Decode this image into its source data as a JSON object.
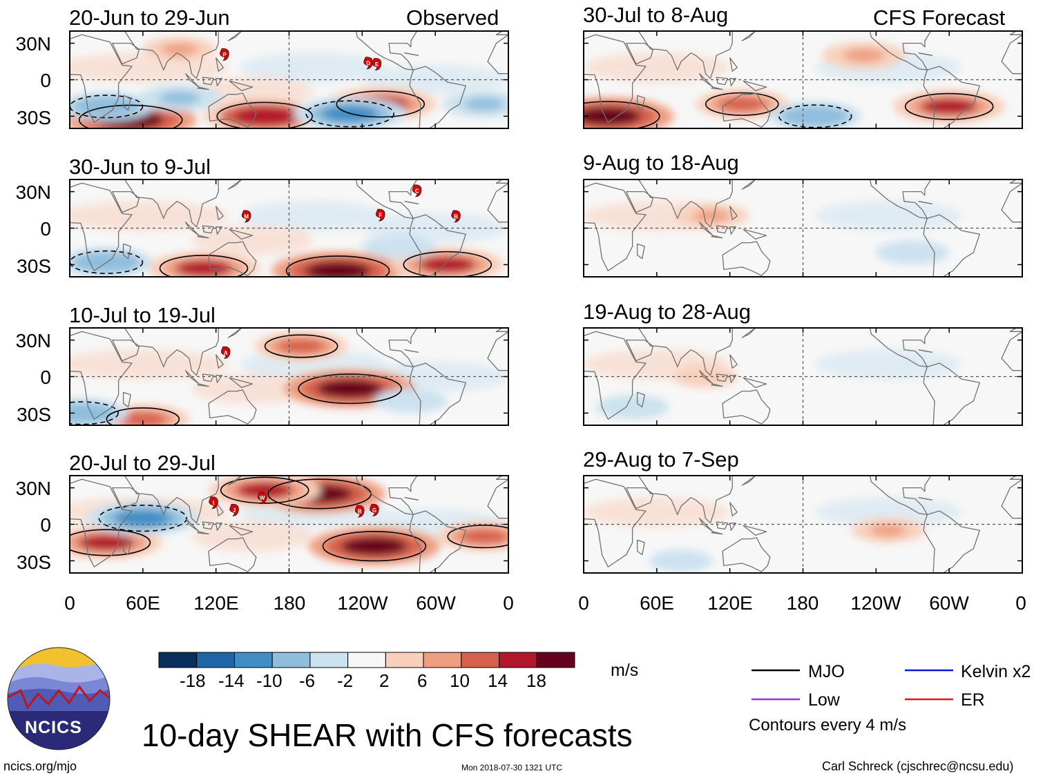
{
  "chart_data": {
    "type": "heatmap",
    "title": "10-day SHEAR with CFS forecasts",
    "colorbar": {
      "units": "m/s",
      "tick_labels": [
        "-18",
        "-14",
        "-10",
        "-6",
        "-2",
        "2",
        "6",
        "10",
        "14",
        "18"
      ],
      "levels": [
        -18,
        -14,
        -10,
        -6,
        -2,
        2,
        6,
        10,
        14,
        18
      ],
      "colors": [
        "#0a2e5c",
        "#1f66a8",
        "#3f8dc4",
        "#8fbedd",
        "#cce2ef",
        "#f7f7f7",
        "#f8d0bc",
        "#ee9f81",
        "#d6604d",
        "#b2182b",
        "#67001f"
      ]
    },
    "x_axis": {
      "tick_labels": [
        "0",
        "60E",
        "120E",
        "180",
        "120W",
        "60W",
        "0"
      ],
      "tick_values_lon": [
        0,
        60,
        120,
        180,
        240,
        300,
        360
      ],
      "range": [
        0,
        360
      ]
    },
    "y_axis": {
      "tick_labels": [
        "30N",
        "0",
        "30S"
      ],
      "tick_values_lat": [
        30,
        0,
        -30
      ],
      "range": [
        -40,
        40
      ]
    },
    "panels": [
      {
        "column": "observed",
        "row": 0,
        "date_range": "20-Jun to 29-Jun",
        "corner_label": "Observed",
        "storms": [
          {
            "letter": "P",
            "lon": 127,
            "lat": 21
          },
          {
            "letter": "D",
            "lon": 245,
            "lat": 14
          },
          {
            "letter": "E",
            "lon": 252,
            "lat": 13
          }
        ],
        "anomalies": [
          {
            "lon": 50,
            "lat": -33,
            "value": 18
          },
          {
            "lon": 160,
            "lat": -30,
            "value": 16
          },
          {
            "lon": 255,
            "lat": -20,
            "value": 14
          },
          {
            "lon": 230,
            "lat": -28,
            "value": -14
          },
          {
            "lon": 30,
            "lat": -22,
            "value": -10
          },
          {
            "lon": 90,
            "lat": -15,
            "value": -8
          },
          {
            "lon": 340,
            "lat": -20,
            "value": -8
          },
          {
            "lon": 90,
            "lat": 25,
            "value": 6
          }
        ]
      },
      {
        "column": "forecast",
        "row": 0,
        "date_range": "30-Jul to 8-Aug",
        "corner_label": "CFS Forecast",
        "anomalies": [
          {
            "lon": 20,
            "lat": -30,
            "value": 18
          },
          {
            "lon": 300,
            "lat": -22,
            "value": 14
          },
          {
            "lon": 130,
            "lat": -20,
            "value": 10
          },
          {
            "lon": 190,
            "lat": -30,
            "value": -10
          },
          {
            "lon": 230,
            "lat": 20,
            "value": 8
          }
        ]
      },
      {
        "column": "observed",
        "row": 1,
        "date_range": "30-Jun to 9-Jul",
        "storms": [
          {
            "letter": "M",
            "lon": 145,
            "lat": 10
          },
          {
            "letter": "F",
            "lon": 255,
            "lat": 11
          },
          {
            "letter": "C",
            "lon": 285,
            "lat": 31
          },
          {
            "letter": "B",
            "lon": 317,
            "lat": 10
          }
        ],
        "anomalies": [
          {
            "lon": 220,
            "lat": -35,
            "value": 18
          },
          {
            "lon": 110,
            "lat": -33,
            "value": 14
          },
          {
            "lon": 310,
            "lat": -30,
            "value": 14
          },
          {
            "lon": 30,
            "lat": -28,
            "value": -10
          },
          {
            "lon": 270,
            "lat": -15,
            "value": -6
          }
        ]
      },
      {
        "column": "forecast",
        "row": 1,
        "date_range": "9-Aug to 18-Aug",
        "anomalies": [
          {
            "lon": 105,
            "lat": 10,
            "value": 6
          },
          {
            "lon": 270,
            "lat": -20,
            "value": -6
          }
        ]
      },
      {
        "column": "observed",
        "row": 2,
        "date_range": "10-Jul to 19-Jul",
        "storms": [
          {
            "letter": "A",
            "lon": 128,
            "lat": 20
          }
        ],
        "anomalies": [
          {
            "lon": 230,
            "lat": -10,
            "value": 18
          },
          {
            "lon": 190,
            "lat": 25,
            "value": 10
          },
          {
            "lon": 60,
            "lat": -35,
            "value": 10
          },
          {
            "lon": 10,
            "lat": -30,
            "value": -10
          },
          {
            "lon": 280,
            "lat": -20,
            "value": -6
          }
        ]
      },
      {
        "column": "forecast",
        "row": 2,
        "date_range": "19-Aug to 28-Aug",
        "anomalies": [
          {
            "lon": 100,
            "lat": 0,
            "value": 4
          },
          {
            "lon": 40,
            "lat": -25,
            "value": -6
          }
        ]
      },
      {
        "column": "observed",
        "row": 3,
        "date_range": "20-Jul to 29-Jul",
        "storms": [
          {
            "letter": "Ⅰ",
            "lon": 118,
            "lat": 18
          },
          {
            "letter": "J",
            "lon": 135,
            "lat": 12
          },
          {
            "letter": "W",
            "lon": 158,
            "lat": 22
          },
          {
            "letter": "B",
            "lon": 238,
            "lat": 11
          },
          {
            "letter": "G",
            "lon": 250,
            "lat": 12
          }
        ],
        "anomalies": [
          {
            "lon": 250,
            "lat": -18,
            "value": 18
          },
          {
            "lon": 205,
            "lat": 25,
            "value": 18
          },
          {
            "lon": 30,
            "lat": -15,
            "value": 14
          },
          {
            "lon": 60,
            "lat": 5,
            "value": -14
          },
          {
            "lon": 160,
            "lat": 28,
            "value": 14
          },
          {
            "lon": 340,
            "lat": -10,
            "value": 10
          }
        ]
      },
      {
        "column": "forecast",
        "row": 3,
        "date_range": "29-Aug to 7-Sep",
        "anomalies": [
          {
            "lon": 250,
            "lat": -5,
            "value": 6
          },
          {
            "lon": 80,
            "lat": -30,
            "value": -4
          }
        ]
      }
    ],
    "legend": {
      "entries": [
        {
          "label": "MJO",
          "color": "#000000"
        },
        {
          "label": "Kelvin x2",
          "color": "#0a14d6"
        },
        {
          "label": "Low",
          "color": "#9b30e0"
        },
        {
          "label": "ER",
          "color": "#e0141e"
        }
      ],
      "note": "Contours every 4 m/s"
    }
  },
  "footer": {
    "site": "ncics.org/mjo",
    "timestamp": "Mon 2018-07-30 1321 UTC",
    "credit": "Carl Schreck (cjschrec@ncsu.edu)",
    "logo_text": "NCICS"
  }
}
